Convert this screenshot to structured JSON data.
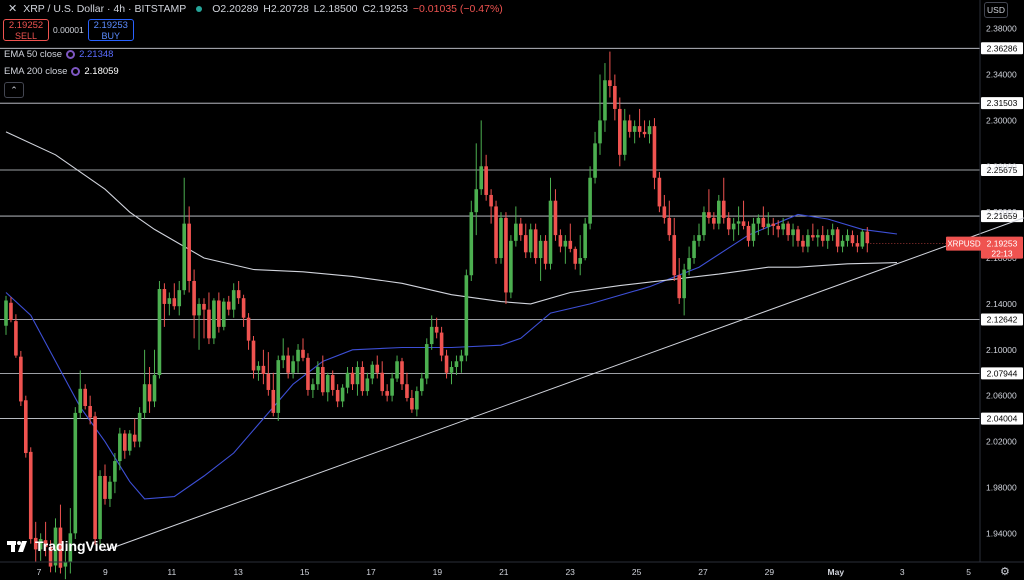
{
  "header": {
    "symbol_title": "XRP / U.S. Dollar · 4h · BITSTAMP",
    "open": "O2.20289",
    "high": "H2.20728",
    "low": "L2.18500",
    "close": "C2.19253",
    "change": "−0.01035 (−0.47%)"
  },
  "trade": {
    "sell_price": "2.19252",
    "sell_label": "SELL",
    "spread": "0.00001",
    "buy_price": "2.19253",
    "buy_label": "BUY"
  },
  "indicators": [
    {
      "label": "EMA 50 close",
      "value": "2.21348"
    },
    {
      "label": "EMA 200 close",
      "value": "2.18059"
    }
  ],
  "currency_button": "USD",
  "brand": "TradingView",
  "colors": {
    "up": "#26a69a",
    "up_candle": "#4caf50",
    "down": "#ef5350",
    "ema50": "#3d4fd6",
    "ema200": "#d1d4dc",
    "background": "#000000"
  },
  "chart_data": {
    "type": "candlestick",
    "title": "XRP / U.S. Dollar · 4h · BITSTAMP",
    "x_tick_labels": [
      "7",
      "9",
      "11",
      "13",
      "15",
      "17",
      "19",
      "21",
      "23",
      "25",
      "27",
      "29",
      "May",
      "3",
      "5"
    ],
    "y_tick_labels": [
      "1.94000",
      "1.98000",
      "2.02000",
      "2.06000",
      "2.10000",
      "2.14000",
      "2.18000",
      "2.22000",
      "2.26000",
      "2.30000",
      "2.34000",
      "2.38000"
    ],
    "ylim": [
      1.915,
      2.398
    ],
    "price_tag": {
      "symbol": "XRPUSD",
      "price": "2.19253",
      "countdown": "22:13"
    },
    "horizontal_levels": [
      {
        "value": 2.36286,
        "label": "2.36286"
      },
      {
        "value": 2.31503,
        "label": "2.31503"
      },
      {
        "value": 2.25675,
        "label": "2.25675"
      },
      {
        "value": 2.21659,
        "label": "2.21659"
      },
      {
        "value": 2.12642,
        "label": "2.12642"
      },
      {
        "value": 2.07944,
        "label": "2.07944"
      },
      {
        "value": 2.04004,
        "label": "2.04004"
      }
    ],
    "trendline": [
      {
        "i": 20,
        "y": 1.925
      },
      {
        "i": 180,
        "y": 2.175
      }
    ],
    "series": [
      {
        "name": "EMA 50 close",
        "points": [
          [
            0,
            2.15
          ],
          [
            5,
            2.13
          ],
          [
            10,
            2.09
          ],
          [
            15,
            2.05
          ],
          [
            20,
            2.02
          ],
          [
            25,
            1.985
          ],
          [
            28,
            1.97
          ],
          [
            34,
            1.972
          ],
          [
            40,
            1.99
          ],
          [
            46,
            2.01
          ],
          [
            52,
            2.04
          ],
          [
            58,
            2.07
          ],
          [
            64,
            2.09
          ],
          [
            70,
            2.1
          ],
          [
            80,
            2.102
          ],
          [
            90,
            2.102
          ],
          [
            100,
            2.104
          ],
          [
            104,
            2.11
          ],
          [
            110,
            2.132
          ],
          [
            118,
            2.14
          ],
          [
            130,
            2.155
          ],
          [
            140,
            2.172
          ],
          [
            150,
            2.2
          ],
          [
            160,
            2.218
          ],
          [
            166,
            2.214
          ],
          [
            173,
            2.205
          ],
          [
            180,
            2.201
          ]
        ]
      },
      {
        "name": "EMA 200 close",
        "points": [
          [
            0,
            2.29
          ],
          [
            10,
            2.27
          ],
          [
            20,
            2.24
          ],
          [
            25,
            2.22
          ],
          [
            30,
            2.205
          ],
          [
            40,
            2.18
          ],
          [
            50,
            2.17
          ],
          [
            60,
            2.168
          ],
          [
            70,
            2.164
          ],
          [
            80,
            2.158
          ],
          [
            90,
            2.148
          ],
          [
            100,
            2.142
          ],
          [
            106,
            2.14
          ],
          [
            114,
            2.15
          ],
          [
            124,
            2.156
          ],
          [
            134,
            2.161
          ],
          [
            144,
            2.166
          ],
          [
            154,
            2.172
          ],
          [
            160,
            2.172
          ],
          [
            170,
            2.175
          ],
          [
            180,
            2.176
          ]
        ]
      }
    ],
    "ohlc": [
      [
        2.121,
        2.147,
        2.113,
        2.143
      ],
      [
        2.141,
        2.146,
        2.124,
        2.126
      ],
      [
        2.125,
        2.131,
        2.093,
        2.095
      ],
      [
        2.094,
        2.099,
        2.051,
        2.055
      ],
      [
        2.056,
        2.06,
        2.006,
        2.01
      ],
      [
        2.011,
        2.015,
        1.931,
        1.935
      ],
      [
        1.936,
        1.95,
        1.915,
        1.926
      ],
      [
        1.926,
        1.94,
        1.916,
        1.935
      ],
      [
        1.934,
        1.95,
        1.92,
        1.928
      ],
      [
        1.928,
        1.934,
        1.906,
        1.911
      ],
      [
        1.912,
        1.953,
        1.906,
        1.945
      ],
      [
        1.945,
        1.965,
        1.905,
        1.91
      ],
      [
        1.911,
        1.925,
        1.9,
        1.915
      ],
      [
        1.915,
        1.962,
        1.905,
        1.94
      ],
      [
        1.94,
        2.05,
        1.935,
        2.045
      ],
      [
        2.045,
        2.082,
        2.04,
        2.066
      ],
      [
        2.066,
        2.07,
        2.048,
        2.051
      ],
      [
        2.051,
        2.06,
        2.035,
        2.041
      ],
      [
        2.042,
        2.046,
        1.93,
        1.935
      ],
      [
        1.935,
        1.995,
        1.93,
        1.99
      ],
      [
        1.99,
        2.0,
        1.965,
        1.97
      ],
      [
        1.97,
        1.99,
        1.963,
        1.985
      ],
      [
        1.985,
        2.01,
        1.975,
        2.003
      ],
      [
        2.003,
        2.032,
        1.995,
        2.027
      ],
      [
        2.027,
        2.03,
        2.005,
        2.012
      ],
      [
        2.012,
        2.03,
        2.008,
        2.027
      ],
      [
        2.026,
        2.04,
        2.015,
        2.02
      ],
      [
        2.02,
        2.05,
        2.015,
        2.045
      ],
      [
        2.045,
        2.1,
        2.04,
        2.07
      ],
      [
        2.07,
        2.085,
        2.045,
        2.055
      ],
      [
        2.055,
        2.1,
        2.05,
        2.078
      ],
      [
        2.078,
        2.16,
        2.075,
        2.153
      ],
      [
        2.153,
        2.158,
        2.12,
        2.14
      ],
      [
        2.14,
        2.15,
        2.13,
        2.145
      ],
      [
        2.145,
        2.158,
        2.135,
        2.138
      ],
      [
        2.138,
        2.16,
        2.13,
        2.152
      ],
      [
        2.152,
        2.25,
        2.148,
        2.21
      ],
      [
        2.21,
        2.225,
        2.15,
        2.16
      ],
      [
        2.16,
        2.17,
        2.11,
        2.13
      ],
      [
        2.13,
        2.145,
        2.1,
        2.14
      ],
      [
        2.14,
        2.145,
        2.11,
        2.135
      ],
      [
        2.135,
        2.15,
        2.105,
        2.11
      ],
      [
        2.11,
        2.145,
        2.105,
        2.143
      ],
      [
        2.143,
        2.15,
        2.115,
        2.12
      ],
      [
        2.12,
        2.145,
        2.117,
        2.142
      ],
      [
        2.142,
        2.147,
        2.13,
        2.135
      ],
      [
        2.135,
        2.158,
        2.128,
        2.152
      ],
      [
        2.152,
        2.16,
        2.14,
        2.145
      ],
      [
        2.145,
        2.148,
        2.12,
        2.128
      ],
      [
        2.128,
        2.132,
        2.1,
        2.108
      ],
      [
        2.108,
        2.112,
        2.075,
        2.082
      ],
      [
        2.082,
        2.09,
        2.073,
        2.086
      ],
      [
        2.086,
        2.1,
        2.07,
        2.079
      ],
      [
        2.079,
        2.098,
        2.06,
        2.065
      ],
      [
        2.065,
        2.08,
        2.042,
        2.045
      ],
      [
        2.045,
        2.095,
        2.038,
        2.091
      ],
      [
        2.091,
        2.11,
        2.084,
        2.095
      ],
      [
        2.095,
        2.102,
        2.075,
        2.08
      ],
      [
        2.08,
        2.095,
        2.075,
        2.09
      ],
      [
        2.09,
        2.105,
        2.08,
        2.1
      ],
      [
        2.1,
        2.11,
        2.09,
        2.093
      ],
      [
        2.093,
        2.097,
        2.06,
        2.065
      ],
      [
        2.065,
        2.075,
        2.058,
        2.07
      ],
      [
        2.07,
        2.09,
        2.065,
        2.085
      ],
      [
        2.085,
        2.095,
        2.06,
        2.063
      ],
      [
        2.063,
        2.08,
        2.055,
        2.078
      ],
      [
        2.078,
        2.082,
        2.06,
        2.065
      ],
      [
        2.065,
        2.07,
        2.05,
        2.055
      ],
      [
        2.055,
        2.07,
        2.05,
        2.067
      ],
      [
        2.067,
        2.085,
        2.062,
        2.08
      ],
      [
        2.08,
        2.085,
        2.065,
        2.07
      ],
      [
        2.07,
        2.09,
        2.06,
        2.085
      ],
      [
        2.085,
        2.09,
        2.06,
        2.064
      ],
      [
        2.064,
        2.08,
        2.06,
        2.075
      ],
      [
        2.075,
        2.09,
        2.07,
        2.087
      ],
      [
        2.087,
        2.095,
        2.075,
        2.08
      ],
      [
        2.08,
        2.09,
        2.06,
        2.064
      ],
      [
        2.064,
        2.07,
        2.055,
        2.06
      ],
      [
        2.06,
        2.08,
        2.055,
        2.075
      ],
      [
        2.075,
        2.095,
        2.072,
        2.09
      ],
      [
        2.09,
        2.093,
        2.065,
        2.07
      ],
      [
        2.07,
        2.08,
        2.055,
        2.058
      ],
      [
        2.058,
        2.065,
        2.045,
        2.048
      ],
      [
        2.048,
        2.068,
        2.042,
        2.064
      ],
      [
        2.064,
        2.08,
        2.06,
        2.075
      ],
      [
        2.075,
        2.11,
        2.07,
        2.105
      ],
      [
        2.105,
        2.13,
        2.1,
        2.12
      ],
      [
        2.12,
        2.128,
        2.11,
        2.115
      ],
      [
        2.115,
        2.12,
        2.09,
        2.095
      ],
      [
        2.095,
        2.1,
        2.075,
        2.08
      ],
      [
        2.08,
        2.09,
        2.07,
        2.085
      ],
      [
        2.085,
        2.095,
        2.078,
        2.09
      ],
      [
        2.09,
        2.1,
        2.08,
        2.095
      ],
      [
        2.095,
        2.17,
        2.09,
        2.165
      ],
      [
        2.165,
        2.23,
        2.16,
        2.22
      ],
      [
        2.22,
        2.28,
        2.2,
        2.24
      ],
      [
        2.24,
        2.3,
        2.235,
        2.26
      ],
      [
        2.26,
        2.27,
        2.23,
        2.235
      ],
      [
        2.235,
        2.24,
        2.21,
        2.225
      ],
      [
        2.225,
        2.23,
        2.175,
        2.18
      ],
      [
        2.18,
        2.22,
        2.175,
        2.215
      ],
      [
        2.215,
        2.22,
        2.14,
        2.15
      ],
      [
        2.15,
        2.2,
        2.145,
        2.195
      ],
      [
        2.195,
        2.225,
        2.19,
        2.21
      ],
      [
        2.21,
        2.215,
        2.195,
        2.2
      ],
      [
        2.2,
        2.21,
        2.18,
        2.185
      ],
      [
        2.185,
        2.21,
        2.18,
        2.205
      ],
      [
        2.205,
        2.21,
        2.175,
        2.18
      ],
      [
        2.18,
        2.2,
        2.16,
        2.195
      ],
      [
        2.195,
        2.2,
        2.17,
        2.175
      ],
      [
        2.175,
        2.25,
        2.17,
        2.23
      ],
      [
        2.23,
        2.24,
        2.195,
        2.2
      ],
      [
        2.2,
        2.205,
        2.185,
        2.19
      ],
      [
        2.19,
        2.2,
        2.175,
        2.195
      ],
      [
        2.195,
        2.21,
        2.185,
        2.188
      ],
      [
        2.188,
        2.19,
        2.17,
        2.175
      ],
      [
        2.175,
        2.2,
        2.165,
        2.18
      ],
      [
        2.18,
        2.215,
        2.178,
        2.21
      ],
      [
        2.21,
        2.26,
        2.205,
        2.25
      ],
      [
        2.25,
        2.29,
        2.245,
        2.28
      ],
      [
        2.28,
        2.34,
        2.27,
        2.3
      ],
      [
        2.3,
        2.35,
        2.29,
        2.335
      ],
      [
        2.335,
        2.36,
        2.32,
        2.33
      ],
      [
        2.33,
        2.34,
        2.3,
        2.31
      ],
      [
        2.31,
        2.32,
        2.26,
        2.27
      ],
      [
        2.27,
        2.31,
        2.265,
        2.3
      ],
      [
        2.3,
        2.305,
        2.285,
        2.29
      ],
      [
        2.29,
        2.3,
        2.28,
        2.295
      ],
      [
        2.295,
        2.31,
        2.285,
        2.29
      ],
      [
        2.29,
        2.3,
        2.285,
        2.288
      ],
      [
        2.288,
        2.3,
        2.28,
        2.295
      ],
      [
        2.295,
        2.302,
        2.24,
        2.25
      ],
      [
        2.25,
        2.255,
        2.22,
        2.225
      ],
      [
        2.225,
        2.235,
        2.21,
        2.215
      ],
      [
        2.215,
        2.23,
        2.195,
        2.2
      ],
      [
        2.2,
        2.215,
        2.16,
        2.165
      ],
      [
        2.165,
        2.18,
        2.14,
        2.145
      ],
      [
        2.145,
        2.175,
        2.13,
        2.17
      ],
      [
        2.17,
        2.19,
        2.165,
        2.18
      ],
      [
        2.18,
        2.2,
        2.175,
        2.195
      ],
      [
        2.195,
        2.21,
        2.19,
        2.2
      ],
      [
        2.2,
        2.225,
        2.195,
        2.22
      ],
      [
        2.22,
        2.24,
        2.21,
        2.215
      ],
      [
        2.215,
        2.22,
        2.205,
        2.21
      ],
      [
        2.21,
        2.235,
        2.205,
        2.23
      ],
      [
        2.23,
        2.25,
        2.21,
        2.215
      ],
      [
        2.215,
        2.22,
        2.2,
        2.205
      ],
      [
        2.205,
        2.215,
        2.195,
        2.21
      ],
      [
        2.21,
        2.225,
        2.2,
        2.212
      ],
      [
        2.212,
        2.23,
        2.205,
        2.208
      ],
      [
        2.208,
        2.212,
        2.19,
        2.195
      ],
      [
        2.195,
        2.215,
        2.19,
        2.21
      ],
      [
        2.21,
        2.218,
        2.2,
        2.215
      ],
      [
        2.215,
        2.225,
        2.205,
        2.207
      ],
      [
        2.207,
        2.22,
        2.2,
        2.21
      ],
      [
        2.21,
        2.215,
        2.2,
        2.208
      ],
      [
        2.208,
        2.213,
        2.198,
        2.205
      ],
      [
        2.205,
        2.215,
        2.2,
        2.21
      ],
      [
        2.21,
        2.212,
        2.195,
        2.2
      ],
      [
        2.2,
        2.21,
        2.19,
        2.205
      ],
      [
        2.205,
        2.208,
        2.19,
        2.195
      ],
      [
        2.195,
        2.2,
        2.185,
        2.19
      ],
      [
        2.19,
        2.205,
        2.185,
        2.2
      ],
      [
        2.2,
        2.21,
        2.195,
        2.198
      ],
      [
        2.198,
        2.205,
        2.19,
        2.2
      ],
      [
        2.2,
        2.208,
        2.19,
        2.195
      ],
      [
        2.195,
        2.205,
        2.188,
        2.2
      ],
      [
        2.2,
        2.21,
        2.195,
        2.205
      ],
      [
        2.205,
        2.207,
        2.185,
        2.19
      ],
      [
        2.19,
        2.2,
        2.185,
        2.195
      ],
      [
        2.195,
        2.205,
        2.19,
        2.2
      ],
      [
        2.2,
        2.204,
        2.19,
        2.193
      ],
      [
        2.193,
        2.2,
        2.185,
        2.19
      ],
      [
        2.19,
        2.205,
        2.188,
        2.203
      ],
      [
        2.203,
        2.207,
        2.185,
        2.193
      ]
    ]
  }
}
